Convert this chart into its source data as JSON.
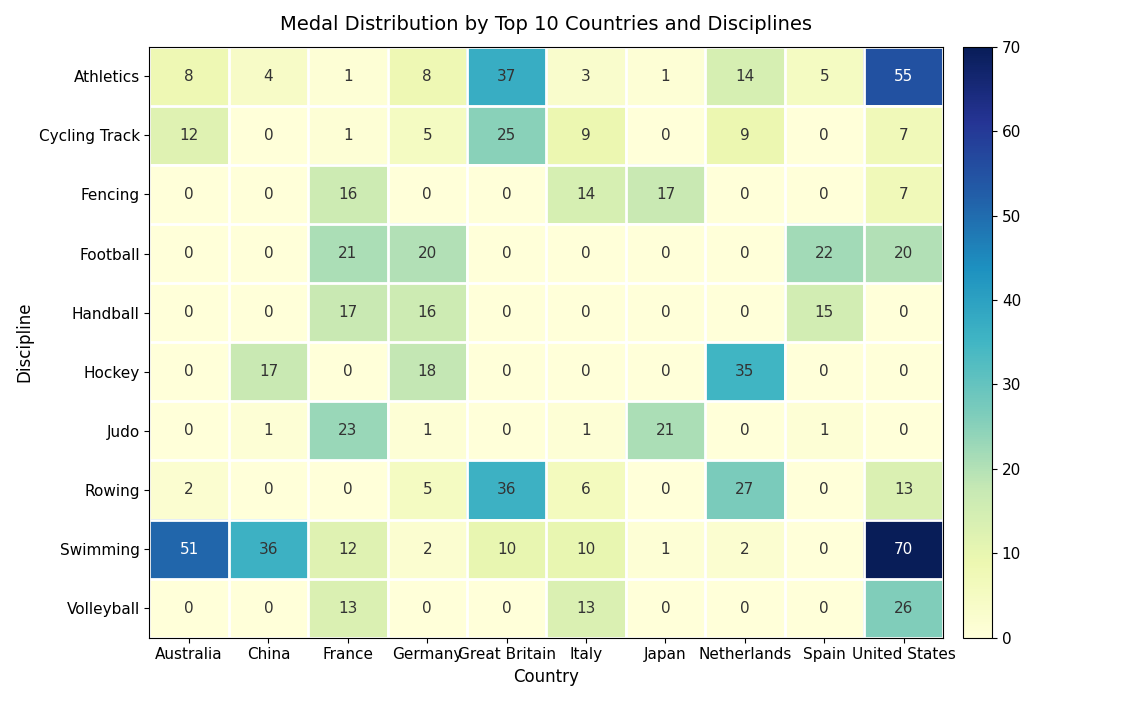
{
  "title": "Medal Distribution by Top 10 Countries and Disciplines",
  "xlabel": "Country",
  "ylabel": "Discipline",
  "countries": [
    "Australia",
    "China",
    "France",
    "Germany",
    "Great Britain",
    "Italy",
    "Japan",
    "Netherlands",
    "Spain",
    "United States"
  ],
  "disciplines": [
    "Athletics",
    "Cycling Track",
    "Fencing",
    "Football",
    "Handball",
    "Hockey",
    "Judo",
    "Rowing",
    "Swimming",
    "Volleyball"
  ],
  "data": [
    [
      8,
      4,
      1,
      8,
      37,
      3,
      1,
      14,
      5,
      55
    ],
    [
      12,
      0,
      1,
      5,
      25,
      9,
      0,
      9,
      0,
      7
    ],
    [
      0,
      0,
      16,
      0,
      0,
      14,
      17,
      0,
      0,
      7
    ],
    [
      0,
      0,
      21,
      20,
      0,
      0,
      0,
      0,
      22,
      20
    ],
    [
      0,
      0,
      17,
      16,
      0,
      0,
      0,
      0,
      15,
      0
    ],
    [
      0,
      17,
      0,
      18,
      0,
      0,
      0,
      35,
      0,
      0
    ],
    [
      0,
      1,
      23,
      1,
      0,
      1,
      21,
      0,
      1,
      0
    ],
    [
      2,
      0,
      0,
      5,
      36,
      6,
      0,
      27,
      0,
      13
    ],
    [
      51,
      36,
      12,
      2,
      10,
      10,
      1,
      2,
      0,
      70
    ],
    [
      0,
      0,
      13,
      0,
      0,
      13,
      0,
      0,
      0,
      26
    ]
  ],
  "cmap": "YlGnBu",
  "vmin": 0,
  "vmax": 70,
  "colorbar_ticks": [
    0,
    10,
    20,
    30,
    40,
    50,
    60,
    70
  ],
  "figsize": [
    11.21,
    7.01
  ],
  "dpi": 100,
  "title_fontsize": 14,
  "axis_label_fontsize": 12,
  "tick_fontsize": 11,
  "annot_fontsize": 11
}
